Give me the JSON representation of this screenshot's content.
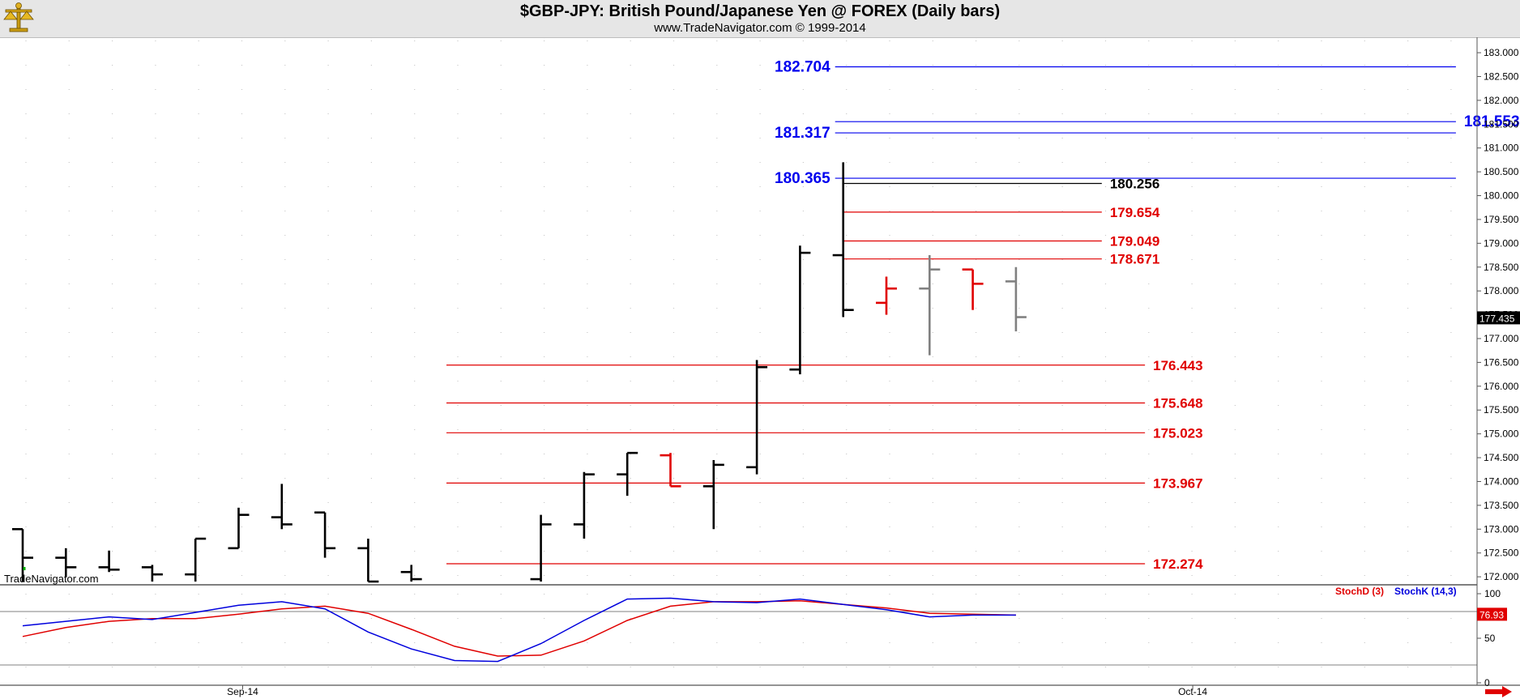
{
  "window": {
    "title": "$GBP-JPY:  British Pound/Japanese Yen @ FOREX  (Daily bars)",
    "subtitle": "www.TradeNavigator.com © 1999-2014",
    "watermark": "TradeNavigator.com",
    "logo_icon": "scales-logo-icon",
    "scroll_icon": "red-right-arrow-icon"
  },
  "chart_data": [
    {
      "type": "ohlc",
      "title": "$GBP-JPY:  British Pound/Japanese Yen @ FOREX  (Daily bars)",
      "ylim": [
        171.9,
        183.12
      ],
      "y_ticks": [
        "183.000",
        "182.500",
        "182.000",
        "181.500",
        "181.000",
        "180.500",
        "180.000",
        "179.500",
        "179.000",
        "178.500",
        "178.000",
        "177.500",
        "177.000",
        "176.500",
        "176.000",
        "175.500",
        "175.000",
        "174.500",
        "174.000",
        "173.500",
        "173.000",
        "172.500",
        "172.000"
      ],
      "x_labels": [
        {
          "label": "Sep-14",
          "bar_index": 5
        },
        {
          "label": "Oct-14",
          "bar_index": 27
        }
      ],
      "last_price": "177.435",
      "colors": {
        "up": "#000000",
        "down": "#e00000",
        "projection": "#808080",
        "blue_level": "#0000ee",
        "red_level": "#e00000"
      },
      "bars": [
        {
          "open": 173.0,
          "high": 173.0,
          "low": 171.9,
          "close": 172.4,
          "color": "#000000"
        },
        {
          "open": 172.4,
          "high": 172.6,
          "low": 172.0,
          "close": 172.2,
          "color": "#000000"
        },
        {
          "open": 172.2,
          "high": 172.55,
          "low": 172.1,
          "close": 172.15,
          "color": "#000000"
        },
        {
          "open": 172.2,
          "high": 172.25,
          "low": 171.9,
          "close": 172.05,
          "color": "#000000"
        },
        {
          "open": 172.05,
          "high": 172.8,
          "low": 171.9,
          "close": 172.8,
          "color": "#000000"
        },
        {
          "open": 172.6,
          "high": 173.45,
          "low": 172.6,
          "close": 173.3,
          "color": "#000000"
        },
        {
          "open": 173.25,
          "high": 173.95,
          "low": 173.0,
          "close": 173.1,
          "color": "#000000"
        },
        {
          "open": 173.35,
          "high": 173.35,
          "low": 172.4,
          "close": 172.6,
          "color": "#000000"
        },
        {
          "open": 172.6,
          "high": 172.8,
          "low": 171.9,
          "close": 171.9,
          "color": "#000000"
        },
        {
          "open": 172.1,
          "high": 172.25,
          "low": 171.9,
          "close": 171.95,
          "color": "#000000"
        },
        {
          "open": null,
          "high": null,
          "low": null,
          "close": null,
          "color": "#000000"
        },
        {
          "open": null,
          "high": null,
          "low": null,
          "close": null,
          "color": "#000000"
        },
        {
          "open": 171.95,
          "high": 173.3,
          "low": 171.9,
          "close": 173.1,
          "color": "#000000"
        },
        {
          "open": 173.1,
          "high": 174.2,
          "low": 172.8,
          "close": 174.15,
          "color": "#000000"
        },
        {
          "open": 174.15,
          "high": 174.6,
          "low": 173.7,
          "close": 174.6,
          "color": "#000000"
        },
        {
          "open": 174.55,
          "high": 174.6,
          "low": 173.9,
          "close": 173.9,
          "color": "#e00000"
        },
        {
          "open": 173.9,
          "high": 174.45,
          "low": 173.0,
          "close": 174.35,
          "color": "#000000"
        },
        {
          "open": 174.3,
          "high": 176.55,
          "low": 174.15,
          "close": 176.4,
          "color": "#000000"
        },
        {
          "open": 176.35,
          "high": 178.95,
          "low": 176.25,
          "close": 178.8,
          "color": "#000000"
        },
        {
          "open": 178.75,
          "high": 180.7,
          "low": 177.45,
          "close": 177.6,
          "color": "#000000"
        },
        {
          "open": 177.75,
          "high": 178.3,
          "low": 177.5,
          "close": 178.05,
          "color": "#e00000"
        },
        {
          "open": 178.05,
          "high": 178.75,
          "low": 176.65,
          "close": 178.45,
          "color": "#808080"
        },
        {
          "open": 178.45,
          "high": 178.45,
          "low": 177.6,
          "close": 178.15,
          "color": "#e00000"
        },
        {
          "open": 178.2,
          "high": 178.5,
          "low": 177.15,
          "close": 177.45,
          "color": "#808080"
        }
      ],
      "levels": [
        {
          "value": 182.704,
          "label": "182.704",
          "color": "#0000ee",
          "from_bar": 19,
          "to_bar": 33,
          "label_side": "left"
        },
        {
          "value": 181.553,
          "label": "181.553",
          "color": "#0000ee",
          "from_bar": 19,
          "to_bar": 33,
          "label_side": "far-right"
        },
        {
          "value": 181.317,
          "label": "181.317",
          "color": "#0000ee",
          "from_bar": 19,
          "to_bar": 33,
          "label_side": "left"
        },
        {
          "value": 180.365,
          "label": "180.365",
          "color": "#0000ee",
          "from_bar": 19,
          "to_bar": 33,
          "label_side": "left"
        },
        {
          "value": 180.256,
          "label": "180.256",
          "color": "#000000",
          "from_bar": 19.2,
          "to_bar": 24.8,
          "label_side": "right"
        },
        {
          "value": 179.654,
          "label": "179.654",
          "color": "#e00000",
          "from_bar": 19.2,
          "to_bar": 24.8,
          "label_side": "right"
        },
        {
          "value": 179.049,
          "label": "179.049",
          "color": "#e00000",
          "from_bar": 19.2,
          "to_bar": 24.8,
          "label_side": "right"
        },
        {
          "value": 178.671,
          "label": "178.671",
          "color": "#e00000",
          "from_bar": 19.2,
          "to_bar": 24.8,
          "label_side": "right"
        },
        {
          "value": 176.443,
          "label": "176.443",
          "color": "#e00000",
          "from_bar": 10,
          "to_bar": 25.8,
          "label_side": "right"
        },
        {
          "value": 175.648,
          "label": "175.648",
          "color": "#e00000",
          "from_bar": 10,
          "to_bar": 25.8,
          "label_side": "right"
        },
        {
          "value": 175.023,
          "label": "175.023",
          "color": "#e00000",
          "from_bar": 10,
          "to_bar": 25.8,
          "label_side": "right"
        },
        {
          "value": 173.967,
          "label": "173.967",
          "color": "#e00000",
          "from_bar": 10,
          "to_bar": 25.8,
          "label_side": "right"
        },
        {
          "value": 172.274,
          "label": "172.274",
          "color": "#e00000",
          "from_bar": 10,
          "to_bar": 25.8,
          "label_side": "right"
        }
      ]
    },
    {
      "type": "line",
      "ylim": [
        0,
        100
      ],
      "y_ticks": [
        "100",
        "50",
        "0"
      ],
      "reference_lines": [
        80,
        20
      ],
      "last_value": "76.93",
      "series": [
        {
          "name": "StochD (3)",
          "color": "#e00000",
          "values": [
            52,
            62,
            69,
            72,
            72,
            77,
            83,
            86,
            78,
            60,
            41,
            30,
            31,
            47,
            70,
            86,
            91,
            91,
            92,
            88,
            84,
            78,
            77,
            76
          ]
        },
        {
          "name": "StochK (14,3)",
          "color": "#0000dd",
          "values": [
            64,
            69,
            74,
            71,
            79,
            87,
            91,
            83,
            57,
            38,
            25,
            24,
            44,
            70,
            94,
            95,
            91,
            90,
            94,
            88,
            82,
            74,
            76,
            76
          ]
        }
      ]
    }
  ]
}
